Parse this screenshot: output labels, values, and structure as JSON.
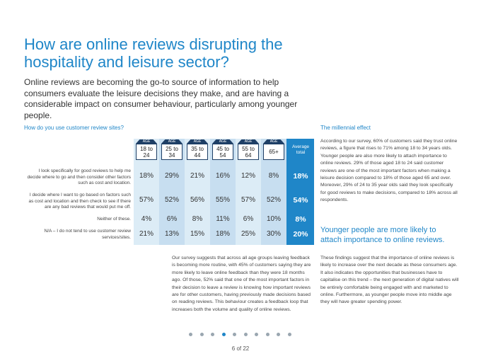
{
  "title": "How are online reviews disrupting the hospitality and leisure sector?",
  "intro": "Online reviews are becoming the go-to source of information to help consumers evaluate the leisure decisions they make, and are having a considerable impact on consumer behaviour, particularly among younger people.",
  "survey": {
    "heading": "How do you use customer review sites?",
    "age_tag": "AGE",
    "columns": [
      "18 to 24",
      "25 to 34",
      "35 to 44",
      "45 to 54",
      "55 to 64",
      "65+"
    ],
    "average_label": "Average total",
    "rows": [
      {
        "label": "I look specifically for good reviews to help me decide where to go and then consider other factors such as cost and location.",
        "values": [
          "18%",
          "29%",
          "21%",
          "16%",
          "12%",
          "8%"
        ],
        "average": "18%"
      },
      {
        "label": "I decide where I want to go based on factors such as cost and location and then check to see if there are any bad reviews that would put me off.",
        "values": [
          "57%",
          "52%",
          "56%",
          "55%",
          "57%",
          "52%"
        ],
        "average": "54%"
      },
      {
        "label": "Neither of these.",
        "values": [
          "4%",
          "6%",
          "8%",
          "11%",
          "6%",
          "10%"
        ],
        "average": "8%"
      },
      {
        "label": "N/A – I do not tend to use customer review services/sites.",
        "values": [
          "21%",
          "13%",
          "15%",
          "18%",
          "25%",
          "30%"
        ],
        "average": "20%"
      }
    ],
    "body": "Our survey suggests that across all age groups leaving feedback is becoming more routine, with 45% of customers saying they are more likely to leave online feedback than they were 18 months ago. Of those, 52% said that one of the most important factors in their decision to leave a review is knowing how important reviews are for other customers, having previously made decisions based on reading reviews. This behaviour creates a feedback loop that increases both the volume and quality of online reviews."
  },
  "millennial": {
    "heading": "The millennial effect",
    "body": "According to our survey, 60% of customers said they trust online reviews, a figure that rises to 71% among 18 to 34 years olds. Younger people are also more likely to attach importance to online reviews. 29% of those aged 18 to 24 said customer reviews are one of the most important factors when making a leisure decision compared to 18% of those aged 65 and over. Moreover, 29% of 24 to 35 year olds said they look specifically for good reviews to make decisions, compared to 18% across all respondents.",
    "callout": "Younger people are more likely to attach importance to online reviews.",
    "findings": "These findings suggest that the importance of online reviews is likely to increase over the next decade as these consumers age. It also indicates the opportunities that businesses have to capitalise on this trend – the next generation of digital natives will be entirely comfortable being engaged with and marketed to online. Furthermore, as younger people move into middle age they will have greater spending power."
  },
  "pagination": {
    "total_dots": 10,
    "active_index": 3,
    "page_label": "6 of 22"
  },
  "colors": {
    "accent": "#1f86c8",
    "dark_navy": "#1e3f66",
    "light_cell": "#dcecf6"
  }
}
